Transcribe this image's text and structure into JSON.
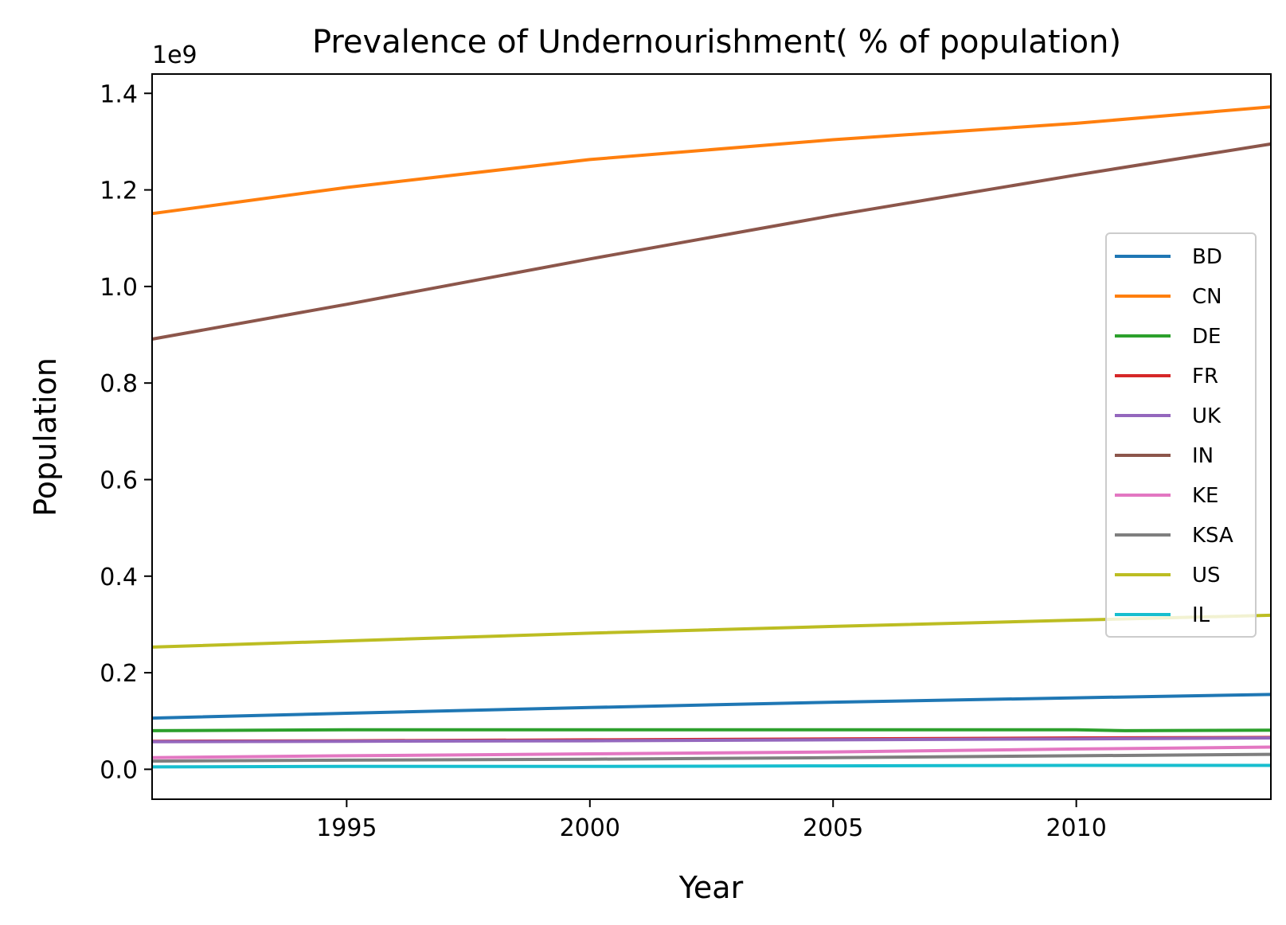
{
  "chart_data": {
    "type": "line",
    "title": "Prevalence of Undernourishment( % of population)",
    "xlabel": "Year",
    "ylabel": "Population",
    "y_scale_label": "1e9",
    "xlim": [
      1991,
      2014
    ],
    "ylim": [
      -0.062,
      1.44
    ],
    "y_scale": 1000000000,
    "xticks": [
      1995,
      2000,
      2005,
      2010
    ],
    "xtick_labels": [
      "1995",
      "2000",
      "2005",
      "2010"
    ],
    "yticks": [
      0.0,
      0.2,
      0.4,
      0.6,
      0.8,
      1.0,
      1.2,
      1.4
    ],
    "ytick_labels": [
      "0.0",
      "0.2",
      "0.4",
      "0.6",
      "0.8",
      "1.0",
      "1.2",
      "1.4"
    ],
    "grid": false,
    "legend_position": "center-right",
    "series": [
      {
        "name": "BD",
        "color": "#1f77b4",
        "points": [
          [
            1991,
            0.106
          ],
          [
            1995,
            0.116
          ],
          [
            2000,
            0.128
          ],
          [
            2005,
            0.139
          ],
          [
            2010,
            0.148
          ],
          [
            2014,
            0.155
          ]
        ]
      },
      {
        "name": "CN",
        "color": "#ff7f0e",
        "points": [
          [
            1991,
            1.151
          ],
          [
            1995,
            1.205
          ],
          [
            2000,
            1.263
          ],
          [
            2005,
            1.304
          ],
          [
            2010,
            1.338
          ],
          [
            2014,
            1.372
          ]
        ]
      },
      {
        "name": "DE",
        "color": "#2ca02c",
        "points": [
          [
            1991,
            0.08
          ],
          [
            1995,
            0.082
          ],
          [
            2000,
            0.082
          ],
          [
            2005,
            0.082
          ],
          [
            2010,
            0.082
          ],
          [
            2011,
            0.08
          ],
          [
            2014,
            0.081
          ]
        ]
      },
      {
        "name": "FR",
        "color": "#d62728",
        "points": [
          [
            1991,
            0.058
          ],
          [
            1995,
            0.059
          ],
          [
            2000,
            0.061
          ],
          [
            2005,
            0.063
          ],
          [
            2010,
            0.065
          ],
          [
            2014,
            0.066
          ]
        ]
      },
      {
        "name": "UK",
        "color": "#9467bd",
        "points": [
          [
            1991,
            0.057
          ],
          [
            1995,
            0.058
          ],
          [
            2000,
            0.059
          ],
          [
            2005,
            0.061
          ],
          [
            2010,
            0.063
          ],
          [
            2014,
            0.065
          ]
        ]
      },
      {
        "name": "IN",
        "color": "#8c564b",
        "points": [
          [
            1991,
            0.891
          ],
          [
            1995,
            0.963
          ],
          [
            2000,
            1.057
          ],
          [
            2005,
            1.147
          ],
          [
            2010,
            1.231
          ],
          [
            2014,
            1.295
          ]
        ]
      },
      {
        "name": "KE",
        "color": "#e377c2",
        "points": [
          [
            1991,
            0.024
          ],
          [
            1995,
            0.028
          ],
          [
            2000,
            0.032
          ],
          [
            2005,
            0.036
          ],
          [
            2010,
            0.042
          ],
          [
            2014,
            0.046
          ]
        ]
      },
      {
        "name": "KSA",
        "color": "#7f7f7f",
        "points": [
          [
            1991,
            0.017
          ],
          [
            1995,
            0.019
          ],
          [
            2000,
            0.021
          ],
          [
            2005,
            0.024
          ],
          [
            2010,
            0.028
          ],
          [
            2014,
            0.031
          ]
        ]
      },
      {
        "name": "US",
        "color": "#bcbd22",
        "points": [
          [
            1991,
            0.253
          ],
          [
            1995,
            0.266
          ],
          [
            2000,
            0.282
          ],
          [
            2005,
            0.296
          ],
          [
            2010,
            0.309
          ],
          [
            2014,
            0.319
          ]
        ]
      },
      {
        "name": "IL",
        "color": "#17becf",
        "points": [
          [
            1991,
            0.005
          ],
          [
            1995,
            0.006
          ],
          [
            2000,
            0.006
          ],
          [
            2005,
            0.007
          ],
          [
            2010,
            0.008
          ],
          [
            2014,
            0.008
          ]
        ]
      }
    ]
  }
}
